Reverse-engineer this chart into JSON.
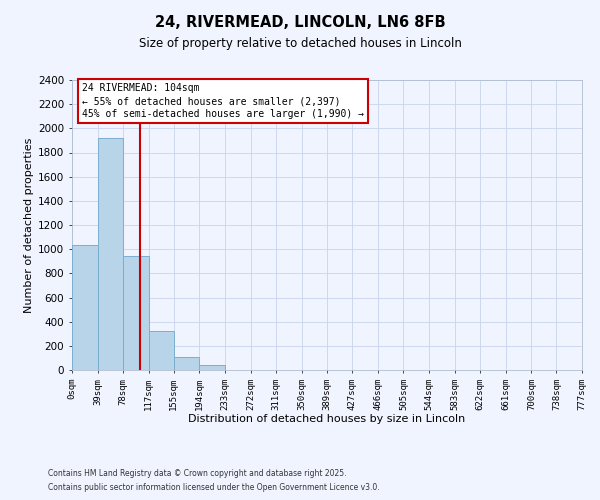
{
  "title": "24, RIVERMEAD, LINCOLN, LN6 8FB",
  "subtitle": "Size of property relative to detached houses in Lincoln",
  "xlabel": "Distribution of detached houses by size in Lincoln",
  "ylabel": "Number of detached properties",
  "bar_values": [
    1035,
    1920,
    940,
    320,
    105,
    45,
    0,
    0,
    0,
    0,
    0,
    0,
    0,
    0,
    0,
    0,
    0,
    0,
    0,
    0
  ],
  "bin_edges": [
    0,
    39,
    78,
    117,
    155,
    194,
    233,
    272,
    311,
    350,
    389,
    427,
    466,
    505,
    544,
    583,
    622,
    661,
    700,
    738,
    777
  ],
  "tick_labels": [
    "0sqm",
    "39sqm",
    "78sqm",
    "117sqm",
    "155sqm",
    "194sqm",
    "233sqm",
    "272sqm",
    "311sqm",
    "350sqm",
    "389sqm",
    "427sqm",
    "466sqm",
    "505sqm",
    "544sqm",
    "583sqm",
    "622sqm",
    "661sqm",
    "700sqm",
    "738sqm",
    "777sqm"
  ],
  "bar_color": "#b8d4e8",
  "bar_edgecolor": "#7aaed0",
  "vline_x": 104,
  "vline_color": "#cc0000",
  "ylim": [
    0,
    2400
  ],
  "annotation_title": "24 RIVERMEAD: 104sqm",
  "annotation_line1": "← 55% of detached houses are smaller (2,397)",
  "annotation_line2": "45% of semi-detached houses are larger (1,990) →",
  "annotation_box_color": "#cc0000",
  "footer1": "Contains HM Land Registry data © Crown copyright and database right 2025.",
  "footer2": "Contains public sector information licensed under the Open Government Licence v3.0.",
  "background_color": "#f0f4ff",
  "grid_color": "#c8d4ec"
}
